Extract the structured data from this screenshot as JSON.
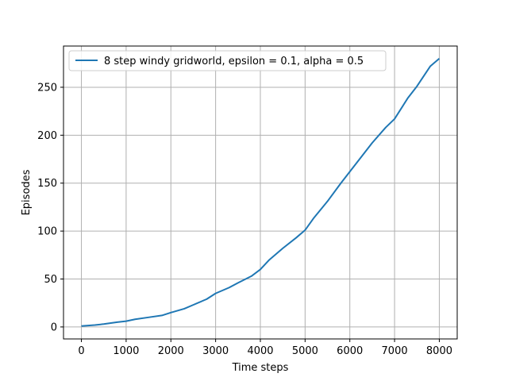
{
  "chart_data": {
    "type": "line",
    "title": "",
    "xlabel": "Time steps",
    "ylabel": "Episodes",
    "xlim": [
      -400,
      8400
    ],
    "ylim": [
      -12.5,
      293
    ],
    "xticks": [
      0,
      1000,
      2000,
      3000,
      4000,
      5000,
      6000,
      7000,
      8000
    ],
    "yticks": [
      0,
      50,
      100,
      150,
      200,
      250
    ],
    "grid": true,
    "legend_position": "top-left",
    "series": [
      {
        "name": "8 step windy gridworld, epsilon = 0.1, alpha = 0.5",
        "color": "#1f77b4",
        "x": [
          0,
          300,
          500,
          800,
          1000,
          1200,
          1500,
          1800,
          2000,
          2300,
          2500,
          2800,
          3000,
          3300,
          3500,
          3800,
          4000,
          4200,
          4500,
          4800,
          5000,
          5200,
          5500,
          5800,
          6000,
          6300,
          6500,
          6800,
          7000,
          7300,
          7500,
          7800,
          8000
        ],
        "y": [
          1,
          2,
          3,
          5,
          6,
          8,
          10,
          12,
          15,
          19,
          23,
          29,
          35,
          41,
          46,
          53,
          60,
          70,
          82,
          93,
          101,
          114,
          131,
          150,
          162,
          180,
          192,
          208,
          217,
          239,
          251,
          272,
          280
        ]
      }
    ]
  }
}
